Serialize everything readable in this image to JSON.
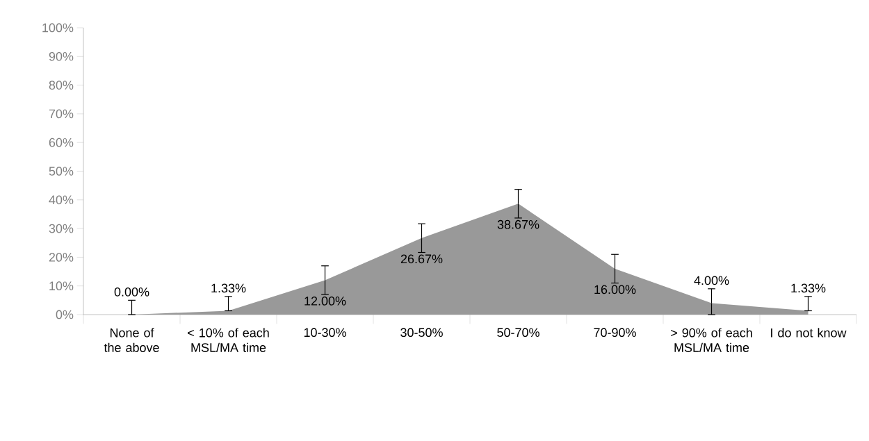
{
  "chart_data": {
    "type": "area",
    "categories": [
      "None of the above",
      "< 10% of each MSL/MA time",
      "10-30%",
      "30-50%",
      "50-70%",
      "70-90%",
      "> 90% of each MSL/MA time",
      "I do not know"
    ],
    "values": [
      0,
      1.33,
      12,
      26.67,
      38.67,
      16,
      4,
      1.33
    ],
    "value_labels": [
      "0.00%",
      "1.33%",
      "12.00%",
      "26.67%",
      "38.67%",
      "16.00%",
      "4.00%",
      "1.33%"
    ],
    "errors": [
      [
        0,
        5
      ],
      [
        1.33,
        6.33
      ],
      5,
      5,
      5,
      5,
      [
        0,
        9
      ],
      [
        1.33,
        6.33
      ]
    ],
    "color": "#999999",
    "ylim": [
      0,
      100
    ],
    "yticks": [
      {
        "value": 0,
        "label": "0%"
      },
      {
        "value": 10,
        "label": "10%"
      },
      {
        "value": 20,
        "label": "20%"
      },
      {
        "value": 30,
        "label": "30%"
      },
      {
        "value": 40,
        "label": "40%"
      },
      {
        "value": 50,
        "label": "50%"
      },
      {
        "value": 60,
        "label": "60%"
      },
      {
        "value": 70,
        "label": "70%"
      },
      {
        "value": 80,
        "label": "80%"
      },
      {
        "value": 90,
        "label": "90%"
      },
      {
        "value": 100,
        "label": "100%"
      }
    ],
    "grid": false
  }
}
